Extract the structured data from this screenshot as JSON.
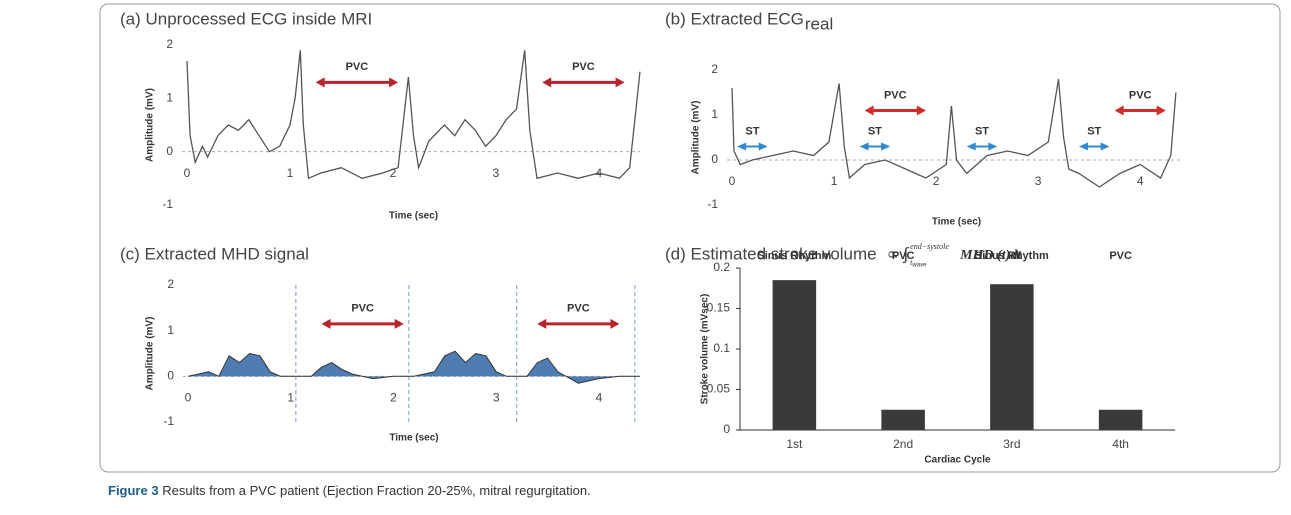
{
  "caption": {
    "label": "Figure 3",
    "text": "Results from a PVC patient (Ejection Fraction 20-25%, mitral regurgitation."
  },
  "chart_data": [
    {
      "type": "line",
      "title": "(a) Unprocessed ECG inside MRI",
      "xlabel": "Time (sec)",
      "ylabel": "Amplitude (mV)",
      "xlim": [
        0,
        4.4
      ],
      "ylim": [
        -1,
        2
      ],
      "xticks": [
        0,
        1,
        2,
        3,
        4
      ],
      "yticks": [
        -1,
        0,
        1,
        2
      ],
      "x": [
        0,
        0.03,
        0.08,
        0.15,
        0.2,
        0.3,
        0.4,
        0.5,
        0.6,
        0.7,
        0.8,
        0.9,
        1.0,
        1.05,
        1.1,
        1.13,
        1.18,
        1.3,
        1.5,
        1.7,
        1.9,
        2.05,
        2.15,
        2.2,
        2.25,
        2.35,
        2.5,
        2.6,
        2.7,
        2.8,
        2.9,
        3.0,
        3.1,
        3.2,
        3.28,
        3.33,
        3.4,
        3.6,
        3.8,
        4.0,
        4.2,
        4.3,
        4.4
      ],
      "series": [
        {
          "color": "#555555",
          "values": [
            1.7,
            0.3,
            -0.2,
            0.1,
            -0.1,
            0.3,
            0.5,
            0.4,
            0.6,
            0.3,
            0.0,
            0.1,
            0.5,
            1.0,
            1.9,
            0.5,
            -0.5,
            -0.4,
            -0.3,
            -0.5,
            -0.4,
            -0.3,
            1.4,
            0.3,
            -0.3,
            0.2,
            0.5,
            0.3,
            0.6,
            0.4,
            0.1,
            0.3,
            0.6,
            0.8,
            1.9,
            0.4,
            -0.5,
            -0.4,
            -0.5,
            -0.4,
            -0.5,
            -0.3,
            1.5
          ]
        }
      ],
      "annotations": [
        {
          "text": "PVC",
          "x": [
            1.25,
            2.05
          ],
          "y": 1.3,
          "color": "#b8242b"
        },
        {
          "text": "PVC",
          "x": [
            3.45,
            4.25
          ],
          "y": 1.3,
          "color": "#b8242b"
        }
      ]
    },
    {
      "type": "line",
      "title": "(b) Extracted ECG",
      "title_subscript": "real",
      "xlabel": "Time (sec)",
      "ylabel": "Amplitude (mV)",
      "xlim": [
        0,
        4.4
      ],
      "ylim": [
        -1,
        2
      ],
      "xticks": [
        0,
        1,
        2,
        3,
        4
      ],
      "yticks": [
        -1,
        0,
        1,
        2
      ],
      "x": [
        0,
        0.02,
        0.08,
        0.2,
        0.4,
        0.6,
        0.8,
        0.95,
        1.05,
        1.1,
        1.15,
        1.2,
        1.3,
        1.5,
        1.7,
        1.9,
        2.1,
        2.15,
        2.2,
        2.3,
        2.5,
        2.7,
        2.9,
        3.1,
        3.2,
        3.25,
        3.3,
        3.4,
        3.6,
        3.8,
        4.0,
        4.2,
        4.3,
        4.35
      ],
      "series": [
        {
          "color": "#555555",
          "values": [
            1.6,
            0.2,
            -0.1,
            0.0,
            0.1,
            0.2,
            0.1,
            0.4,
            1.7,
            0.3,
            -0.4,
            -0.3,
            -0.1,
            0.0,
            -0.2,
            -0.4,
            -0.1,
            1.2,
            0.0,
            -0.3,
            0.1,
            0.2,
            0.1,
            0.4,
            1.8,
            0.5,
            -0.2,
            -0.3,
            -0.6,
            -0.3,
            -0.1,
            -0.4,
            0.1,
            1.5
          ]
        }
      ],
      "annotations": [
        {
          "text": "ST",
          "x": [
            0.05,
            0.35
          ],
          "y": 0.3,
          "color": "#2f8ad0"
        },
        {
          "text": "PVC",
          "x": [
            1.3,
            1.9
          ],
          "y": 1.1,
          "color": "#d42a2a"
        },
        {
          "text": "ST",
          "x": [
            1.25,
            1.55
          ],
          "y": 0.3,
          "color": "#2f8ad0"
        },
        {
          "text": "ST",
          "x": [
            2.3,
            2.6
          ],
          "y": 0.3,
          "color": "#2f8ad0"
        },
        {
          "text": "ST",
          "x": [
            3.4,
            3.7
          ],
          "y": 0.3,
          "color": "#2f8ad0"
        },
        {
          "text": "PVC",
          "x": [
            3.75,
            4.25
          ],
          "y": 1.1,
          "color": "#d42a2a"
        }
      ]
    },
    {
      "type": "area",
      "title": "(c) Extracted MHD signal",
      "xlabel": "Time (sec)",
      "ylabel": "Amplitude (mV)",
      "xlim": [
        0,
        4.4
      ],
      "ylim": [
        -1,
        2
      ],
      "xticks": [
        0,
        1,
        2,
        3,
        4
      ],
      "yticks": [
        -1,
        0,
        1,
        2
      ],
      "x": [
        0,
        0.1,
        0.2,
        0.3,
        0.4,
        0.5,
        0.6,
        0.7,
        0.8,
        0.9,
        1.0,
        1.2,
        1.3,
        1.4,
        1.5,
        1.6,
        1.8,
        2.0,
        2.2,
        2.4,
        2.5,
        2.6,
        2.7,
        2.8,
        2.9,
        3.0,
        3.1,
        3.3,
        3.4,
        3.5,
        3.6,
        3.8,
        4.0,
        4.2,
        4.4
      ],
      "series": [
        {
          "color": "#3d6fa8",
          "values": [
            0,
            0.05,
            0.1,
            0.0,
            0.45,
            0.3,
            0.5,
            0.45,
            0.1,
            0.0,
            0.0,
            0.0,
            0.2,
            0.3,
            0.15,
            0.05,
            -0.05,
            0.0,
            0.0,
            0.1,
            0.45,
            0.55,
            0.3,
            0.5,
            0.45,
            0.1,
            0.0,
            0.0,
            0.3,
            0.4,
            0.1,
            -0.15,
            -0.05,
            0.0,
            0.0
          ]
        }
      ],
      "vlines": [
        1.05,
        2.15,
        3.2,
        4.35
      ],
      "annotations": [
        {
          "text": "PVC",
          "x": [
            1.3,
            2.1
          ],
          "y": 1.15,
          "color": "#b8242b"
        },
        {
          "text": "PVC",
          "x": [
            3.4,
            4.2
          ],
          "y": 1.15,
          "color": "#b8242b"
        }
      ]
    },
    {
      "type": "bar",
      "title": "(d) Estimated stroke volume",
      "formula": {
        "symbol": "∝ ∫",
        "upper": "end−systole",
        "lower": "t",
        "lower_sub": "wave",
        "integrand": "MHD (t)dt"
      },
      "xlabel": "Cardiac Cycle",
      "ylabel": "Stroke volume (mVsec)",
      "categories": [
        "1st",
        "2nd",
        "3rd",
        "4th"
      ],
      "values": [
        0.185,
        0.025,
        0.18,
        0.025
      ],
      "bar_labels": [
        "Sinus Rhythm",
        "PVC",
        "Sinus Rhythm",
        "PVC"
      ],
      "color": "#3a3a3a",
      "ylim": [
        0,
        0.2
      ],
      "yticks": [
        0,
        0.05,
        0.1,
        0.15,
        0.2
      ]
    }
  ]
}
